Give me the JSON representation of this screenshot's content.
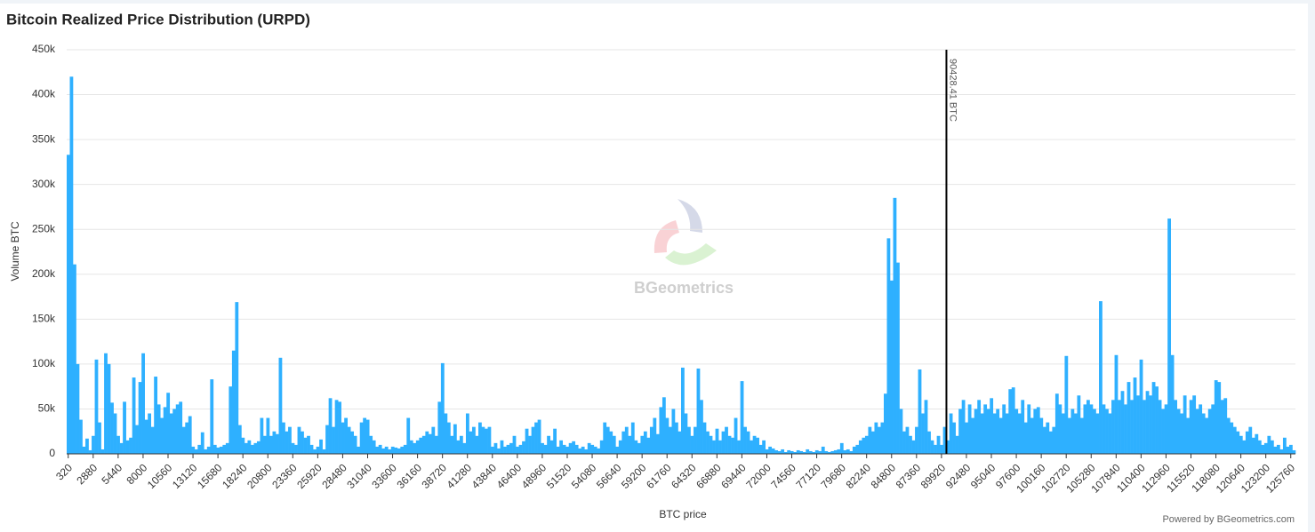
{
  "chart_data": {
    "type": "bar",
    "title": "Bitcoin Realized Price Distribution (URPD)",
    "x_label": "BTC price",
    "y_label": "Volume BTC",
    "color": "#2eb0ff",
    "grid": true,
    "watermark": "BGeometrics",
    "credit": "Powered by BGeometrics.com",
    "annotation": {
      "value": 90428.41,
      "label": "90428.41 BTC"
    },
    "ylim": [
      0,
      450000
    ],
    "yticks": [
      0,
      {
        "value": 50000,
        "label": "50k"
      },
      {
        "value": 100000,
        "label": "100k"
      },
      {
        "value": 150000,
        "label": "150k"
      },
      {
        "value": 200000,
        "label": "200k"
      },
      {
        "value": 250000,
        "label": "250k"
      },
      {
        "value": 300000,
        "label": "300k"
      },
      {
        "value": 350000,
        "label": "350k"
      },
      {
        "value": 400000,
        "label": "400k"
      },
      {
        "value": 450000,
        "label": "450k"
      }
    ],
    "categories": [
      320,
      null,
      null,
      null,
      null,
      null,
      null,
      null,
      2880,
      null,
      null,
      null,
      null,
      null,
      null,
      null,
      5440,
      null,
      null,
      null,
      null,
      null,
      null,
      null,
      8000,
      null,
      null,
      null,
      null,
      null,
      null,
      null,
      10560,
      null,
      null,
      null,
      null,
      null,
      null,
      null,
      13120,
      null,
      null,
      null,
      null,
      null,
      null,
      null,
      15680,
      null,
      null,
      null,
      null,
      null,
      null,
      null,
      18240,
      null,
      null,
      null,
      null,
      null,
      null,
      null,
      20800,
      null,
      null,
      null,
      null,
      null,
      null,
      null,
      23360,
      null,
      null,
      null,
      null,
      null,
      null,
      null,
      25920,
      null,
      null,
      null,
      null,
      null,
      null,
      null,
      28480,
      null,
      null,
      null,
      null,
      null,
      null,
      null,
      31040,
      null,
      null,
      null,
      null,
      null,
      null,
      null,
      33600,
      null,
      null,
      null,
      null,
      null,
      null,
      null,
      36160,
      null,
      null,
      null,
      null,
      null,
      null,
      null,
      38720,
      null,
      null,
      null,
      null,
      null,
      null,
      null,
      41280,
      null,
      null,
      null,
      null,
      null,
      null,
      null,
      43840,
      null,
      null,
      null,
      null,
      null,
      null,
      null,
      46400,
      null,
      null,
      null,
      null,
      null,
      null,
      null,
      48960,
      null,
      null,
      null,
      null,
      null,
      null,
      null,
      51520,
      null,
      null,
      null,
      null,
      null,
      null,
      null,
      54080,
      null,
      null,
      null,
      null,
      null,
      null,
      null,
      56640,
      null,
      null,
      null,
      null,
      null,
      null,
      null,
      59200,
      null,
      null,
      null,
      null,
      null,
      null,
      null,
      61760,
      null,
      null,
      null,
      null,
      null,
      null,
      null,
      64320,
      null,
      null,
      null,
      null,
      null,
      null,
      null,
      66880,
      null,
      null,
      null,
      null,
      null,
      null,
      null,
      69440,
      null,
      null,
      null,
      null,
      null,
      null,
      null,
      72000,
      null,
      null,
      null,
      null,
      null,
      null,
      null,
      74560,
      null,
      null,
      null,
      null,
      null,
      null,
      null,
      77120,
      null,
      null,
      null,
      null,
      null,
      null,
      null,
      79680,
      null,
      null,
      null,
      null,
      null,
      null,
      null,
      82240,
      null,
      null,
      null,
      null,
      null,
      null,
      null,
      84800,
      null,
      null,
      null,
      null,
      null,
      null,
      null,
      87360,
      null,
      null,
      null,
      null,
      null,
      null,
      null,
      89920,
      null,
      null,
      null,
      null,
      null,
      null,
      null,
      92480,
      null,
      null,
      null,
      null,
      null,
      null,
      null,
      95040,
      null,
      null,
      null,
      null,
      null,
      null,
      null,
      97600,
      null,
      null,
      null,
      null,
      null,
      null,
      null,
      100160,
      null,
      null,
      null,
      null,
      null,
      null,
      null,
      102720,
      null,
      null,
      null,
      null,
      null,
      null,
      null,
      105280,
      null,
      null,
      null,
      null,
      null,
      null,
      null,
      107840,
      null,
      null,
      null,
      null,
      null,
      null,
      null,
      110400,
      null,
      null,
      null,
      null,
      null,
      null,
      null,
      112960,
      null,
      null,
      null,
      null,
      null,
      null,
      null,
      115520,
      null,
      null,
      null,
      null,
      null,
      null,
      null,
      118080,
      null,
      null,
      null,
      null,
      null,
      null,
      null,
      120640,
      null,
      null,
      null,
      null,
      null,
      null,
      null,
      123200,
      null,
      null,
      null,
      null,
      null,
      null,
      null,
      125760,
      null
    ],
    "values": [
      333000,
      420000,
      211000,
      100000,
      38000,
      8000,
      17000,
      4000,
      20000,
      105000,
      35000,
      5000,
      112000,
      100000,
      57000,
      45000,
      20000,
      12000,
      58000,
      15000,
      18000,
      85000,
      32000,
      80000,
      112000,
      38000,
      45000,
      30000,
      86000,
      55000,
      40000,
      52000,
      68000,
      45000,
      50000,
      55000,
      58000,
      30000,
      35000,
      42000,
      8000,
      5000,
      10000,
      24000,
      5000,
      8000,
      83000,
      10000,
      7000,
      8000,
      10000,
      12000,
      75000,
      115000,
      169000,
      32000,
      18000,
      12000,
      15000,
      10000,
      12000,
      14000,
      40000,
      20000,
      40000,
      20000,
      25000,
      22000,
      107000,
      35000,
      25000,
      30000,
      12000,
      10000,
      30000,
      25000,
      18000,
      20000,
      10000,
      5000,
      8000,
      16000,
      5000,
      32000,
      62000,
      30000,
      60000,
      58000,
      35000,
      40000,
      30000,
      25000,
      20000,
      8000,
      35000,
      40000,
      38000,
      20000,
      15000,
      8000,
      10000,
      6000,
      8000,
      5000,
      8000,
      7000,
      6000,
      8000,
      10000,
      40000,
      15000,
      12000,
      15000,
      18000,
      20000,
      25000,
      22000,
      30000,
      20000,
      58000,
      101000,
      45000,
      35000,
      20000,
      33000,
      15000,
      20000,
      12000,
      45000,
      25000,
      30000,
      20000,
      35000,
      30000,
      28000,
      30000,
      8000,
      12000,
      6000,
      15000,
      8000,
      10000,
      12000,
      20000,
      8000,
      10000,
      14000,
      28000,
      20000,
      30000,
      35000,
      38000,
      12000,
      10000,
      20000,
      15000,
      28000,
      8000,
      15000,
      10000,
      8000,
      12000,
      14000,
      10000,
      6000,
      8000,
      5000,
      12000,
      10000,
      8000,
      6000,
      15000,
      35000,
      30000,
      25000,
      20000,
      8000,
      15000,
      25000,
      30000,
      20000,
      35000,
      15000,
      12000,
      20000,
      25000,
      18000,
      30000,
      40000,
      22000,
      52000,
      63000,
      40000,
      30000,
      50000,
      35000,
      25000,
      96000,
      45000,
      30000,
      20000,
      30000,
      95000,
      60000,
      35000,
      25000,
      20000,
      15000,
      28000,
      15000,
      25000,
      30000,
      20000,
      18000,
      40000,
      15000,
      81000,
      30000,
      25000,
      15000,
      20000,
      18000,
      10000,
      15000,
      5000,
      8000,
      6000,
      4000,
      3000,
      5000,
      2000,
      4000,
      3000,
      2000,
      4000,
      3000,
      2000,
      5000,
      3000,
      2000,
      4000,
      3000,
      8000,
      3000,
      2000,
      3000,
      4000,
      5000,
      12000,
      4000,
      5000,
      3000,
      8000,
      10000,
      15000,
      18000,
      20000,
      30000,
      25000,
      35000,
      30000,
      35000,
      67000,
      240000,
      193000,
      285000,
      213000,
      50000,
      25000,
      30000,
      20000,
      15000,
      30000,
      94000,
      45000,
      60000,
      25000,
      15000,
      10000,
      20000,
      10000,
      30000,
      15000,
      45000,
      35000,
      20000,
      50000,
      60000,
      35000,
      55000,
      40000,
      50000,
      60000,
      45000,
      55000,
      50000,
      62000,
      45000,
      50000,
      40000,
      55000,
      45000,
      72000,
      74000,
      50000,
      45000,
      60000,
      35000,
      55000,
      40000,
      50000,
      52000,
      40000,
      30000,
      35000,
      25000,
      30000,
      67000,
      55000,
      45000,
      109000,
      40000,
      50000,
      45000,
      65000,
      40000,
      55000,
      60000,
      55000,
      50000,
      45000,
      170000,
      55000,
      50000,
      45000,
      60000,
      110000,
      60000,
      70000,
      55000,
      80000,
      60000,
      85000,
      65000,
      105000,
      60000,
      70000,
      65000,
      80000,
      75000,
      60000,
      50000,
      55000,
      262000,
      110000,
      60000,
      50000,
      45000,
      65000,
      40000,
      60000,
      65000,
      50000,
      55000,
      45000,
      40000,
      50000,
      55000,
      82000,
      80000,
      60000,
      62000,
      40000,
      35000,
      30000,
      25000,
      20000,
      15000,
      25000,
      30000,
      18000,
      22000,
      15000,
      10000,
      12000,
      20000,
      15000,
      8000,
      10000,
      5000,
      18000,
      8000,
      10000,
      4000
    ]
  }
}
